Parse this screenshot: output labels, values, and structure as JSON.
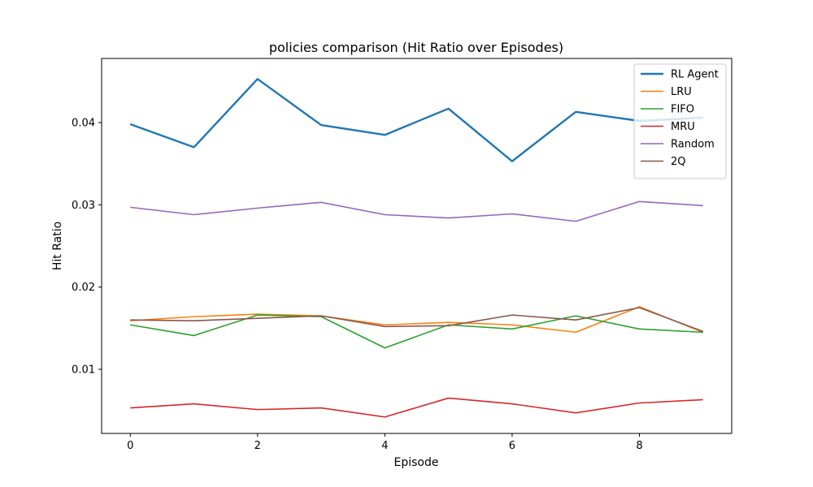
{
  "chart_data": {
    "type": "line",
    "title": "policies comparison (Hit Ratio over Episodes)",
    "xlabel": "Episode",
    "ylabel": "Hit Ratio",
    "xlim": [
      -0.45,
      9.45
    ],
    "ylim": [
      0.0022,
      0.0478
    ],
    "xticks": [
      0,
      2,
      4,
      6,
      8
    ],
    "yticks": [
      0.01,
      0.02,
      0.03,
      0.04
    ],
    "xtick_labels": [
      "0",
      "2",
      "4",
      "6",
      "8"
    ],
    "ytick_labels": [
      "0.01",
      "0.02",
      "0.03",
      "0.04"
    ],
    "grid": false,
    "legend_position": "top-right",
    "x": [
      0,
      1,
      2,
      3,
      4,
      5,
      6,
      7,
      8,
      9
    ],
    "series": [
      {
        "name": "RL Agent",
        "color": "#1f77b4",
        "values": [
          0.0398,
          0.037,
          0.0453,
          0.0397,
          0.0385,
          0.0417,
          0.0353,
          0.0413,
          0.0402,
          0.0406
        ]
      },
      {
        "name": "LRU",
        "color": "#ff7f0e",
        "values": [
          0.0159,
          0.0164,
          0.0167,
          0.0165,
          0.0154,
          0.0157,
          0.0154,
          0.0145,
          0.0176,
          0.0145
        ]
      },
      {
        "name": "FIFO",
        "color": "#2ca02c",
        "values": [
          0.0154,
          0.0141,
          0.0166,
          0.0164,
          0.0126,
          0.0154,
          0.0149,
          0.0165,
          0.0149,
          0.0145
        ]
      },
      {
        "name": "MRU",
        "color": "#d62728",
        "values": [
          0.0053,
          0.0058,
          0.0051,
          0.0053,
          0.0042,
          0.0065,
          0.0058,
          0.0047,
          0.0059,
          0.0063
        ]
      },
      {
        "name": "Random",
        "color": "#9467bd",
        "values": [
          0.0297,
          0.0288,
          0.0296,
          0.0303,
          0.0288,
          0.0284,
          0.0289,
          0.028,
          0.0304,
          0.0299
        ]
      },
      {
        "name": "2Q",
        "color": "#8c564b",
        "values": [
          0.016,
          0.0159,
          0.0162,
          0.0165,
          0.0152,
          0.0153,
          0.0166,
          0.016,
          0.0175,
          0.0146
        ]
      }
    ]
  }
}
